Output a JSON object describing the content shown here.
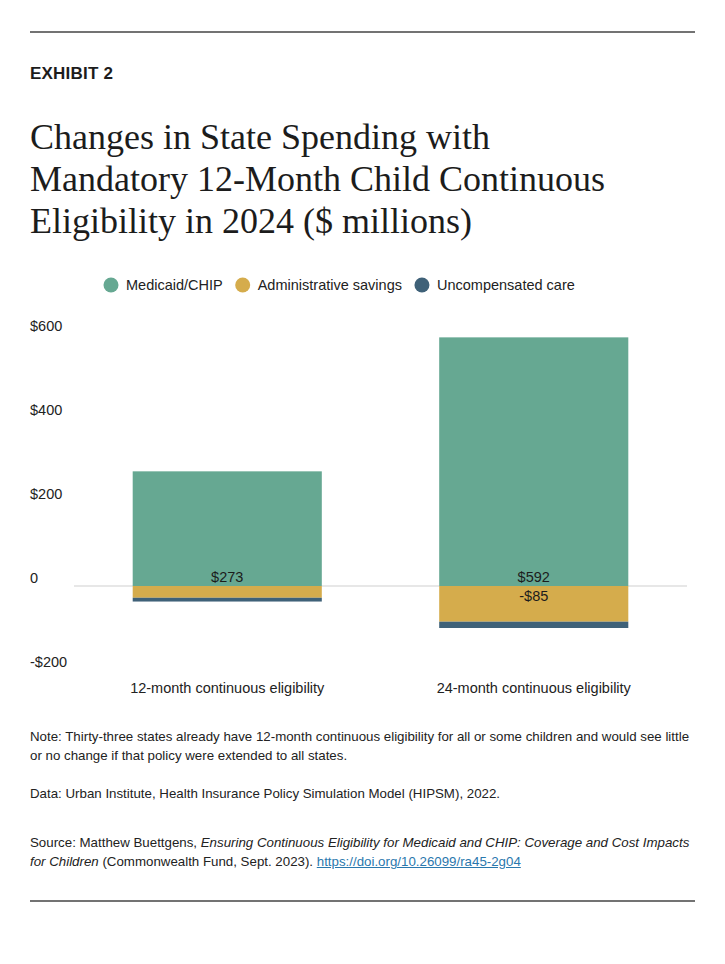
{
  "chart_data": {
    "type": "bar",
    "stacked": true,
    "data_labels": true,
    "grid": false,
    "legend": "top",
    "exhibit_label": "EXHIBIT 2",
    "title": "Changes in State Spending with\nMandatory 12-Month Child Continuous\nEligibility in 2024 ($ millions)",
    "categories": [
      "12-month continuous eligibility",
      "24-month continuous eligibility"
    ],
    "series": [
      {
        "name": "Medicaid/CHIP",
        "color": "#66a892",
        "values": [
          273,
          592
        ],
        "value_labels": [
          "$273",
          "$592"
        ]
      },
      {
        "name": "Administrative savings",
        "color": "#d5ac4c",
        "values": [
          -28,
          -85
        ],
        "value_labels": [
          null,
          "-$85"
        ]
      },
      {
        "name": "Uncompensated care",
        "color": "#3f6178",
        "values": [
          -9,
          -15
        ]
      }
    ],
    "ylim": [
      -200,
      600
    ],
    "yticks": [
      {
        "value": -200,
        "label": "-$200"
      },
      0,
      {
        "value": 200,
        "label": "$200"
      },
      {
        "value": 400,
        "label": "$400"
      },
      {
        "value": 600,
        "label": "$600"
      }
    ],
    "note": "Note: Thirty-three states already have 12-month continuous eligibility for all or some children and would see little or no change if that policy were extended to all states.",
    "data_credit": "Data: Urban Institute, Health Insurance Policy Simulation Model (HIPSM), 2022.",
    "source": {
      "lead": "Source: Matthew Buettgens, ",
      "work_title": "Ensuring Continuous Eligibility for Medicaid and CHIP: Coverage and Cost Impacts for Children",
      "publisher": " (Commonwealth Fund, Sept. 2023). ",
      "link": "https://doi.org/10.26099/ra45-2g04"
    }
  }
}
